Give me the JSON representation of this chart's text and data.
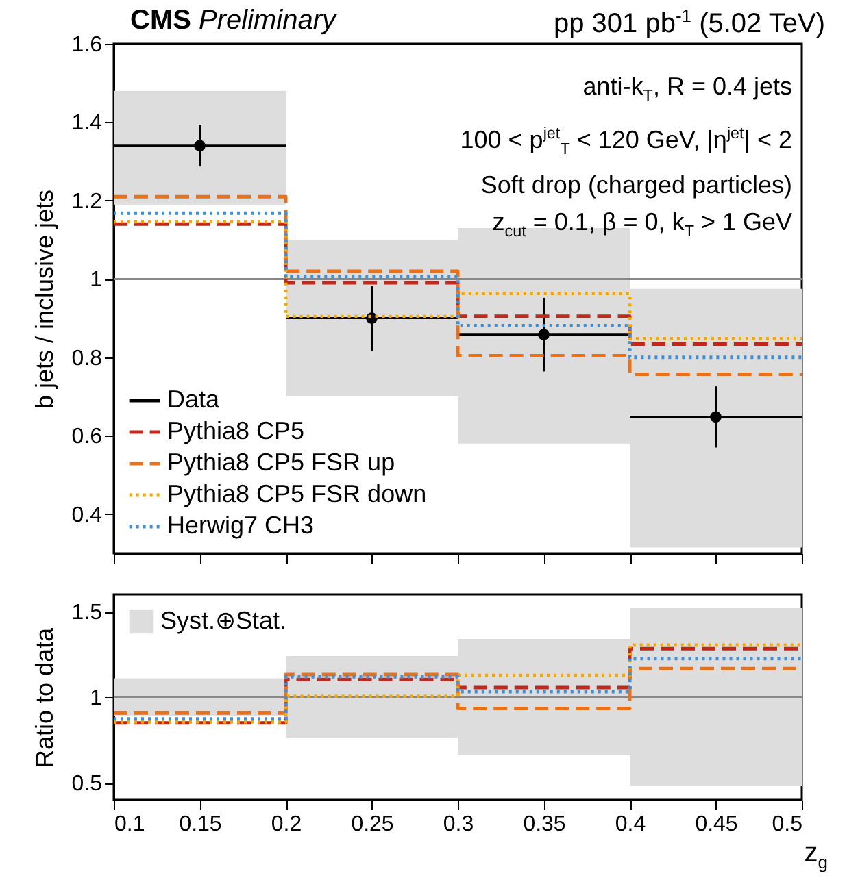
{
  "chart_data": [
    {
      "type": "step",
      "title": "CMS Preliminary",
      "subtitle": "pp 301 pb$^{-1}$ (5.02 TeV)",
      "ylabel": "b jets / inclusive jets",
      "annotations": [
        "anti-k$_{T}$, R = 0.4 jets",
        "100 < p$^{jet}$$_{T}$ < 120 GeV, |η$^{jet}$| < 2",
        "Soft drop (charged particles)",
        "z$_{cut}$ = 0.1, β = 0, k$_{T}$ > 1 GeV"
      ],
      "xlim": [
        0.1,
        0.5
      ],
      "xticks": [
        0.1,
        0.15,
        0.2,
        0.25,
        0.3,
        0.35,
        0.4,
        0.45,
        0.5
      ],
      "ylim": [
        0.3,
        1.6
      ],
      "yticks": [
        0.4,
        0.6,
        0.8,
        1,
        1.2,
        1.4,
        1.6
      ],
      "tick_labels": "y",
      "legend": "bottom left",
      "ref_lines": [
        {
          "axis": "y",
          "value": 1,
          "color": "#888888"
        }
      ],
      "series": [
        {
          "type": "bar",
          "color": "#dddddd",
          "x": [
            0.15,
            0.25,
            0.35,
            0.45
          ],
          "base": [
            1.19,
            0.7,
            0.58,
            0.315
          ],
          "values": [
            0.29,
            0.4,
            0.55,
            0.66
          ]
        },
        {
          "type": "scatter",
          "name": "Data",
          "color": "#000000",
          "marker": "circle",
          "x": [
            0.15,
            0.25,
            0.35,
            0.45
          ],
          "values": [
            1.34,
            0.9,
            0.858,
            0.648
          ],
          "errors": [
            0.053,
            0.083,
            0.094,
            0.078
          ],
          "xerrors": [
            0.05,
            0.05,
            0.05,
            0.05
          ]
        },
        {
          "name": "Pythia8 CP5",
          "color": "#c0281b",
          "line_style": "dashed",
          "x": [
            0.1,
            0.2,
            0.3,
            0.4,
            0.5
          ],
          "values": [
            1.14,
            0.99,
            0.905,
            0.834,
            0.834
          ]
        },
        {
          "name": "Pythia8 CP5 FSR up",
          "color": "#e8711c",
          "line_style": "dashed",
          "x": [
            0.1,
            0.2,
            0.3,
            0.4,
            0.5
          ],
          "values": [
            1.21,
            1.02,
            0.804,
            0.757,
            0.757
          ]
        },
        {
          "name": "Pythia8 CP5 FSR down",
          "color": "#f5a800",
          "line_style": "dotted",
          "x": [
            0.1,
            0.2,
            0.3,
            0.4,
            0.5
          ],
          "values": [
            1.146,
            0.904,
            0.963,
            0.848,
            0.848
          ]
        },
        {
          "name": "Herwig7 CH3",
          "color": "#3f90da",
          "line_style": "dotted",
          "x": [
            0.1,
            0.2,
            0.3,
            0.4,
            0.5
          ],
          "values": [
            1.168,
            1.006,
            0.881,
            0.8,
            0.8
          ]
        }
      ]
    },
    {
      "type": "step",
      "xlabel": "z$_{g}$",
      "ylabel": "Ratio to data",
      "xlim": [
        0.1,
        0.5
      ],
      "xticks": [
        0.1,
        0.15,
        0.2,
        0.25,
        0.3,
        0.35,
        0.4,
        0.45,
        0.5
      ],
      "ylim": [
        0.4,
        1.6
      ],
      "yticks": [
        0.5,
        1,
        1.5
      ],
      "legend": "top left",
      "ref_lines": [
        {
          "axis": "y",
          "value": 1,
          "color": "#888888"
        }
      ],
      "series": [
        {
          "type": "bar",
          "name": "Syst.⊕Stat.",
          "color": "#dddddd",
          "x": [
            0.15,
            0.25,
            0.35,
            0.45
          ],
          "base": [
            0.89,
            0.76,
            0.66,
            0.48
          ],
          "values": [
            0.22,
            0.48,
            0.68,
            1.04
          ]
        },
        {
          "color": "#c0281b",
          "line_style": "dashed",
          "x": [
            0.1,
            0.2,
            0.3,
            0.4,
            0.5
          ],
          "values": [
            0.849,
            1.103,
            1.056,
            1.283,
            1.283
          ]
        },
        {
          "color": "#e8711c",
          "line_style": "dashed",
          "x": [
            0.1,
            0.2,
            0.3,
            0.4,
            0.5
          ],
          "values": [
            0.907,
            1.132,
            0.934,
            1.167,
            1.167
          ]
        },
        {
          "color": "#f5a800",
          "line_style": "dotted",
          "x": [
            0.1,
            0.2,
            0.3,
            0.4,
            0.5
          ],
          "values": [
            0.855,
            1.005,
            1.127,
            1.304,
            1.304
          ]
        },
        {
          "color": "#3f90da",
          "line_style": "dotted",
          "x": [
            0.1,
            0.2,
            0.3,
            0.4,
            0.5
          ],
          "values": [
            0.873,
            1.119,
            1.032,
            1.225,
            1.225
          ]
        }
      ]
    }
  ]
}
